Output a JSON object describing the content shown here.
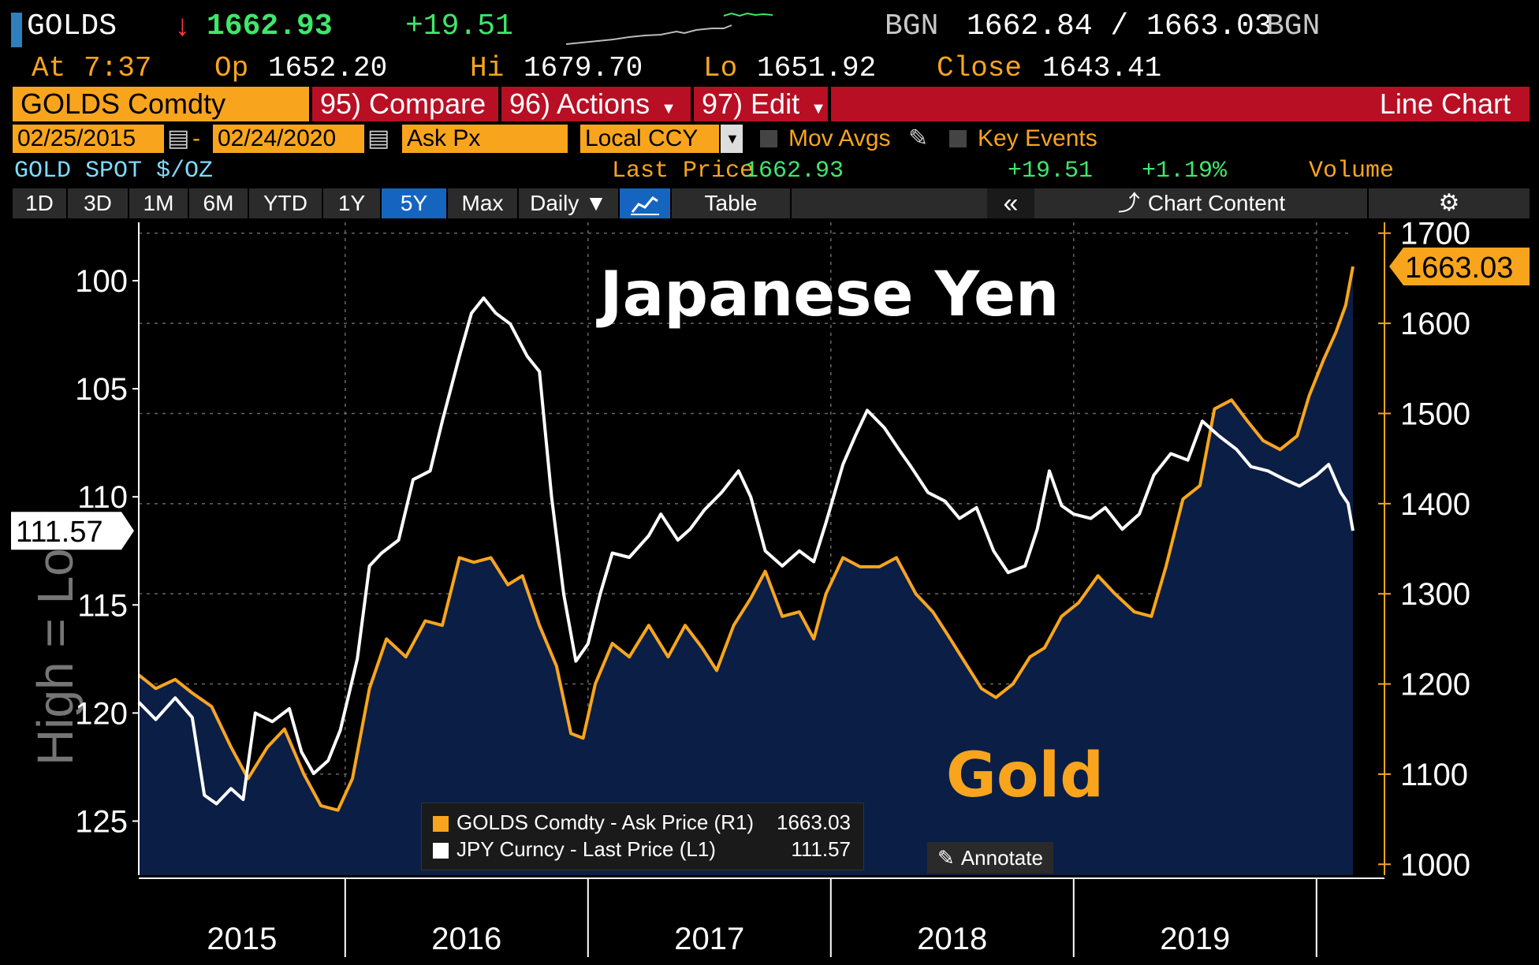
{
  "header": {
    "ticker": "GOLDS",
    "arrow": "↓",
    "price": "1662.93",
    "change": "+19.51",
    "source1": "BGN",
    "bid_ask": "1662.84 / 1663.03",
    "source2": "BGN",
    "at_label": "At",
    "at_time": "7:37",
    "op_label": "Op",
    "op_value": "1652.20",
    "hi_label": "Hi",
    "hi_value": "1679.70",
    "lo_label": "Lo",
    "lo_value": "1651.92",
    "close_label": "Close",
    "close_value": "1643.41"
  },
  "toolbar": {
    "security": "GOLDS Comdty",
    "compare": "95) Compare",
    "actions": "96) Actions",
    "edit": "97) Edit",
    "chart_type": "Line Chart"
  },
  "settings": {
    "start_date": "02/25/2015",
    "end_date": "02/24/2020",
    "field": "Ask Px",
    "currency": "Local CCY",
    "mov_avgs": "Mov Avgs",
    "key_events": "Key Events"
  },
  "info": {
    "name": "GOLD SPOT $/OZ",
    "last_price_label": "Last Price",
    "last_price": "1662.93",
    "change": "+19.51",
    "change_pct": "+1.19%",
    "volume": "Volume"
  },
  "tabs": {
    "items": [
      "1D",
      "3D",
      "1M",
      "6M",
      "YTD",
      "1Y",
      "5Y",
      "Max",
      "Daily ▼"
    ],
    "active": "5Y",
    "table": "Table",
    "collapse": "«",
    "chart_content": "Chart Content"
  },
  "chart_data": {
    "type": "line",
    "title": "",
    "annotations": [
      "Japanese Yen",
      "Gold"
    ],
    "left_axis_label": "High = Low",
    "x_ticks": [
      "2015",
      "2016",
      "2017",
      "2018",
      "2019"
    ],
    "left_axis": {
      "ticks": [
        100,
        105,
        110,
        115,
        120,
        125
      ],
      "range": [
        97.3,
        127.5
      ],
      "inverted": true,
      "last_value_label": "111.57"
    },
    "right_axis": {
      "ticks": [
        1000,
        1100,
        1200,
        1300,
        1400,
        1500,
        1600,
        1700
      ],
      "range": [
        988,
        1712
      ],
      "last_value_label": "1663.03"
    },
    "x_range": [
      2015.15,
      2020.15
    ],
    "grid": true,
    "series": [
      {
        "name": "GOLDS Comdty - Ask Price (R1)",
        "last": "1663.03",
        "color": "#f8a51d",
        "axis": "right",
        "style": "area",
        "points": [
          [
            2015.15,
            1210
          ],
          [
            2015.22,
            1195
          ],
          [
            2015.3,
            1205
          ],
          [
            2015.37,
            1190
          ],
          [
            2015.45,
            1175
          ],
          [
            2015.53,
            1130
          ],
          [
            2015.6,
            1095
          ],
          [
            2015.68,
            1130
          ],
          [
            2015.75,
            1150
          ],
          [
            2015.83,
            1100
          ],
          [
            2015.9,
            1065
          ],
          [
            2015.97,
            1060
          ],
          [
            2016.03,
            1095
          ],
          [
            2016.1,
            1195
          ],
          [
            2016.17,
            1250
          ],
          [
            2016.25,
            1230
          ],
          [
            2016.33,
            1270
          ],
          [
            2016.4,
            1265
          ],
          [
            2016.47,
            1340
          ],
          [
            2016.53,
            1335
          ],
          [
            2016.6,
            1340
          ],
          [
            2016.67,
            1310
          ],
          [
            2016.73,
            1320
          ],
          [
            2016.8,
            1265
          ],
          [
            2016.87,
            1220
          ],
          [
            2016.93,
            1145
          ],
          [
            2016.98,
            1140
          ],
          [
            2017.03,
            1200
          ],
          [
            2017.1,
            1245
          ],
          [
            2017.17,
            1230
          ],
          [
            2017.25,
            1265
          ],
          [
            2017.33,
            1230
          ],
          [
            2017.4,
            1265
          ],
          [
            2017.47,
            1240
          ],
          [
            2017.53,
            1215
          ],
          [
            2017.6,
            1265
          ],
          [
            2017.67,
            1295
          ],
          [
            2017.73,
            1325
          ],
          [
            2017.8,
            1275
          ],
          [
            2017.87,
            1280
          ],
          [
            2017.93,
            1250
          ],
          [
            2017.98,
            1300
          ],
          [
            2018.05,
            1340
          ],
          [
            2018.12,
            1330
          ],
          [
            2018.2,
            1330
          ],
          [
            2018.27,
            1340
          ],
          [
            2018.35,
            1300
          ],
          [
            2018.42,
            1280
          ],
          [
            2018.48,
            1255
          ],
          [
            2018.55,
            1225
          ],
          [
            2018.62,
            1195
          ],
          [
            2018.68,
            1185
          ],
          [
            2018.75,
            1200
          ],
          [
            2018.82,
            1230
          ],
          [
            2018.88,
            1240
          ],
          [
            2018.95,
            1275
          ],
          [
            2019.02,
            1290
          ],
          [
            2019.1,
            1320
          ],
          [
            2019.17,
            1300
          ],
          [
            2019.25,
            1280
          ],
          [
            2019.32,
            1275
          ],
          [
            2019.38,
            1330
          ],
          [
            2019.45,
            1405
          ],
          [
            2019.52,
            1420
          ],
          [
            2019.58,
            1505
          ],
          [
            2019.65,
            1515
          ],
          [
            2019.72,
            1490
          ],
          [
            2019.78,
            1470
          ],
          [
            2019.85,
            1460
          ],
          [
            2019.92,
            1475
          ],
          [
            2019.97,
            1520
          ],
          [
            2020.03,
            1560
          ],
          [
            2020.08,
            1590
          ],
          [
            2020.12,
            1620
          ],
          [
            2020.15,
            1663
          ]
        ]
      },
      {
        "name": "JPY Curncy - Last Price (L1)",
        "last": "111.57",
        "color": "#ffffff",
        "axis": "left",
        "style": "line",
        "points": [
          [
            2015.15,
            119.5
          ],
          [
            2015.22,
            120.3
          ],
          [
            2015.3,
            119.3
          ],
          [
            2015.37,
            120.2
          ],
          [
            2015.42,
            123.8
          ],
          [
            2015.47,
            124.2
          ],
          [
            2015.53,
            123.5
          ],
          [
            2015.58,
            124.0
          ],
          [
            2015.63,
            120.0
          ],
          [
            2015.7,
            120.4
          ],
          [
            2015.77,
            119.8
          ],
          [
            2015.82,
            121.8
          ],
          [
            2015.87,
            122.8
          ],
          [
            2015.93,
            122.2
          ],
          [
            2015.98,
            120.8
          ],
          [
            2016.05,
            117.5
          ],
          [
            2016.1,
            113.2
          ],
          [
            2016.15,
            112.6
          ],
          [
            2016.22,
            112.0
          ],
          [
            2016.28,
            109.2
          ],
          [
            2016.35,
            108.8
          ],
          [
            2016.4,
            106.5
          ],
          [
            2016.47,
            103.5
          ],
          [
            2016.52,
            101.5
          ],
          [
            2016.57,
            100.8
          ],
          [
            2016.62,
            101.5
          ],
          [
            2016.68,
            102.0
          ],
          [
            2016.75,
            103.5
          ],
          [
            2016.8,
            104.2
          ],
          [
            2016.85,
            110.0
          ],
          [
            2016.9,
            114.5
          ],
          [
            2016.95,
            117.6
          ],
          [
            2017.0,
            116.8
          ],
          [
            2017.05,
            114.5
          ],
          [
            2017.1,
            112.6
          ],
          [
            2017.17,
            112.8
          ],
          [
            2017.25,
            111.8
          ],
          [
            2017.3,
            110.8
          ],
          [
            2017.37,
            112.0
          ],
          [
            2017.42,
            111.5
          ],
          [
            2017.48,
            110.6
          ],
          [
            2017.55,
            109.8
          ],
          [
            2017.62,
            108.8
          ],
          [
            2017.67,
            110.0
          ],
          [
            2017.73,
            112.5
          ],
          [
            2017.8,
            113.2
          ],
          [
            2017.87,
            112.5
          ],
          [
            2017.93,
            113.0
          ],
          [
            2017.98,
            111.2
          ],
          [
            2018.05,
            108.5
          ],
          [
            2018.1,
            107.2
          ],
          [
            2018.15,
            106.0
          ],
          [
            2018.22,
            106.8
          ],
          [
            2018.28,
            107.8
          ],
          [
            2018.33,
            108.6
          ],
          [
            2018.4,
            109.8
          ],
          [
            2018.47,
            110.2
          ],
          [
            2018.53,
            111.0
          ],
          [
            2018.6,
            110.5
          ],
          [
            2018.67,
            112.5
          ],
          [
            2018.73,
            113.5
          ],
          [
            2018.8,
            113.2
          ],
          [
            2018.85,
            111.5
          ],
          [
            2018.9,
            108.8
          ],
          [
            2018.95,
            110.4
          ],
          [
            2019.0,
            110.8
          ],
          [
            2019.07,
            111.0
          ],
          [
            2019.13,
            110.5
          ],
          [
            2019.2,
            111.5
          ],
          [
            2019.27,
            110.8
          ],
          [
            2019.33,
            109.0
          ],
          [
            2019.4,
            108.0
          ],
          [
            2019.47,
            108.3
          ],
          [
            2019.53,
            106.5
          ],
          [
            2019.6,
            107.2
          ],
          [
            2019.67,
            107.8
          ],
          [
            2019.73,
            108.6
          ],
          [
            2019.8,
            108.8
          ],
          [
            2019.87,
            109.2
          ],
          [
            2019.93,
            109.5
          ],
          [
            2020.0,
            109.0
          ],
          [
            2020.05,
            108.5
          ],
          [
            2020.1,
            109.8
          ],
          [
            2020.13,
            110.3
          ],
          [
            2020.15,
            111.57
          ]
        ]
      }
    ],
    "legend_position": "bottom-center"
  },
  "annotate_button": "Annotate"
}
